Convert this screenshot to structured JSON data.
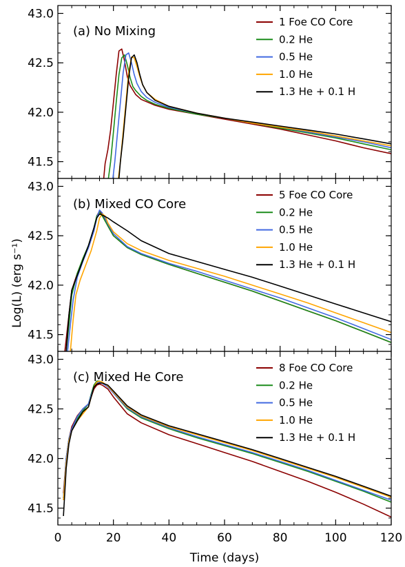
{
  "chart_data": {
    "type": "line",
    "xlabel": "Time (days)",
    "ylabel": "Log(L) (erg s⁻¹)",
    "xlim": [
      0,
      120
    ],
    "ylim": [
      41.33,
      43.08
    ],
    "xticks": [
      0,
      20,
      40,
      60,
      80,
      100,
      120
    ],
    "yticks": [
      41.5,
      42.0,
      42.5,
      43.0
    ],
    "xtick_labels": [
      "0",
      "20",
      "40",
      "60",
      "80",
      "100",
      "120"
    ],
    "ytick_labels": [
      "41.5",
      "42.0",
      "42.5",
      "43.0"
    ],
    "series_colors": [
      "#8b0000",
      "#1a8c1a",
      "#4169e1",
      "#ffa500",
      "#000000"
    ],
    "legend_position": "top-right",
    "panels": [
      {
        "title": "(a) No Mixing",
        "series": [
          {
            "name": "1 Foe CO Core",
            "x": [
              16.5,
              17,
              18,
              19,
              20,
              21,
              22,
              23,
              24,
              25,
              26,
              28,
              30,
              35,
              40,
              50,
              60,
              70,
              80,
              90,
              100,
              110,
              120
            ],
            "y": [
              41.33,
              41.48,
              41.62,
              41.82,
              42.1,
              42.38,
              42.62,
              42.64,
              42.52,
              42.36,
              42.27,
              42.18,
              42.13,
              42.07,
              42.03,
              41.98,
              41.93,
              41.88,
              41.83,
              41.77,
              41.71,
              41.64,
              41.58
            ]
          },
          {
            "name": "0.2 He",
            "x": [
              18.2,
              19,
              20,
              21,
              22,
              23,
              24,
              25,
              26,
              27,
              28,
              30,
              32,
              35,
              40,
              50,
              60,
              70,
              80,
              90,
              100,
              110,
              120
            ],
            "y": [
              41.33,
              41.5,
              41.8,
              42.1,
              42.38,
              42.55,
              42.58,
              42.48,
              42.35,
              42.26,
              42.22,
              42.16,
              42.12,
              42.08,
              42.04,
              41.98,
              41.94,
              41.89,
              41.84,
              41.79,
              41.74,
              41.68,
              41.62
            ]
          },
          {
            "name": "0.5 He",
            "x": [
              19.8,
              20.5,
              21.5,
              22.5,
              23.5,
              24.5,
              25.5,
              26.5,
              27.5,
              28.5,
              30,
              32,
              35,
              40,
              50,
              60,
              70,
              80,
              90,
              100,
              110,
              120
            ],
            "y": [
              41.33,
              41.5,
              41.8,
              42.1,
              42.4,
              42.58,
              42.6,
              42.5,
              42.38,
              42.29,
              42.21,
              42.15,
              42.1,
              42.05,
              41.99,
              41.94,
              41.89,
              41.85,
              41.8,
              41.75,
              41.7,
              41.64
            ]
          },
          {
            "name": "1.0 He",
            "x": [
              21.8,
              22.5,
              23.5,
              24.5,
              25.5,
              26.5,
              27.5,
              28.5,
              29.5,
              30.5,
              32,
              35,
              40,
              50,
              60,
              70,
              80,
              90,
              100,
              110,
              120
            ],
            "y": [
              41.33,
              41.5,
              41.8,
              42.1,
              42.4,
              42.56,
              42.55,
              42.46,
              42.36,
              42.28,
              42.2,
              42.13,
              42.06,
              41.99,
              41.94,
              41.89,
              41.85,
              41.81,
              41.76,
              41.71,
              41.66
            ]
          },
          {
            "name": "1.3 He + 0.1 H",
            "x": [
              22,
              22.5,
              23.5,
              24.5,
              25.5,
              26.5,
              27.5,
              28.5,
              29.5,
              30.5,
              32,
              35,
              40,
              50,
              60,
              70,
              80,
              90,
              100,
              110,
              120
            ],
            "y": [
              41.33,
              41.5,
              41.75,
              42.05,
              42.35,
              42.55,
              42.58,
              42.5,
              42.38,
              42.28,
              42.2,
              42.12,
              42.06,
              41.99,
              41.94,
              41.9,
              41.86,
              41.82,
              41.78,
              41.73,
              41.68
            ]
          }
        ]
      },
      {
        "title": "(b) Mixed CO Core",
        "legend_first": "5 Foe CO Core",
        "series": [
          {
            "name": "5 Foe CO Core",
            "x": [
              2.5,
              4,
              5,
              7,
              9,
              11,
              13,
              14,
              15,
              16,
              18,
              20,
              25,
              30,
              40,
              50,
              60,
              70,
              80,
              90,
              100,
              110,
              120
            ],
            "y": [
              41.33,
              41.7,
              41.95,
              42.12,
              42.25,
              42.38,
              42.55,
              42.7,
              42.75,
              42.72,
              42.6,
              42.5,
              42.38,
              42.31,
              42.21,
              42.12,
              42.03,
              41.94,
              41.84,
              41.74,
              41.64,
              41.53,
              41.42
            ]
          },
          {
            "name": "0.2 He",
            "x": [
              3,
              4,
              5,
              7,
              9,
              11,
              13,
              14,
              15,
              16,
              18,
              20,
              25,
              30,
              40,
              50,
              60,
              70,
              80,
              90,
              100,
              110,
              120
            ],
            "y": [
              41.33,
              41.6,
              41.9,
              42.12,
              42.27,
              42.4,
              42.58,
              42.7,
              42.74,
              42.7,
              42.6,
              42.5,
              42.38,
              42.31,
              42.21,
              42.12,
              42.03,
              41.94,
              41.84,
              41.74,
              41.64,
              41.53,
              41.42
            ]
          },
          {
            "name": "0.5 He",
            "x": [
              3.5,
              4.5,
              5.5,
              7,
              9,
              11,
              13,
              14,
              15,
              16,
              18,
              20,
              25,
              30,
              40,
              50,
              60,
              70,
              80,
              90,
              100,
              110,
              120
            ],
            "y": [
              41.33,
              41.6,
              41.85,
              42.08,
              42.24,
              42.38,
              42.55,
              42.68,
              42.76,
              42.73,
              42.62,
              42.52,
              42.39,
              42.32,
              42.22,
              42.14,
              42.05,
              41.96,
              41.87,
              41.77,
              41.67,
              41.56,
              41.45
            ]
          },
          {
            "name": "1.0 He",
            "x": [
              4.5,
              5.5,
              6.5,
              8,
              10,
              12,
              14,
              15,
              16,
              17,
              18,
              20,
              25,
              30,
              40,
              50,
              60,
              70,
              80,
              90,
              100,
              110,
              120
            ],
            "y": [
              41.33,
              41.65,
              41.9,
              42.05,
              42.2,
              42.35,
              42.55,
              42.68,
              42.72,
              42.7,
              42.63,
              42.54,
              42.42,
              42.35,
              42.25,
              42.17,
              42.09,
              42.0,
              41.91,
              41.82,
              41.72,
              41.62,
              41.52
            ]
          },
          {
            "name": "1.3 He + 0.1 H",
            "x": [
              3,
              4,
              5,
              7,
              9,
              11,
              13,
              14,
              15,
              16,
              18,
              20,
              25,
              30,
              40,
              50,
              60,
              70,
              80,
              90,
              100,
              110,
              120
            ],
            "y": [
              41.33,
              41.7,
              41.95,
              42.1,
              42.25,
              42.4,
              42.58,
              42.68,
              42.72,
              42.71,
              42.68,
              42.64,
              42.55,
              42.45,
              42.32,
              42.24,
              42.16,
              42.08,
              41.99,
              41.9,
              41.81,
              41.72,
              41.63
            ]
          }
        ]
      },
      {
        "title": "(c) Mixed He Core",
        "series": [
          {
            "name": "8 Foe CO Core",
            "x": [
              2,
              3,
              4,
              5,
              7,
              9,
              11,
              12,
              13,
              14,
              15,
              16,
              18,
              20,
              25,
              30,
              40,
              50,
              60,
              70,
              80,
              90,
              100,
              110,
              120
            ],
            "y": [
              41.65,
              42.0,
              42.2,
              42.32,
              42.43,
              42.5,
              42.55,
              42.62,
              42.7,
              42.74,
              42.75,
              42.74,
              42.7,
              42.62,
              42.45,
              42.36,
              42.24,
              42.15,
              42.06,
              41.97,
              41.87,
              41.77,
              41.66,
              41.54,
              41.41
            ]
          },
          {
            "name": "0.2 He",
            "x": [
              2,
              3,
              4,
              5,
              7,
              9,
              11,
              12,
              13,
              14,
              15,
              16,
              18,
              20,
              25,
              30,
              40,
              50,
              60,
              70,
              80,
              90,
              100,
              110,
              120
            ],
            "y": [
              41.6,
              42.0,
              42.2,
              42.3,
              42.4,
              42.48,
              42.55,
              42.65,
              42.74,
              42.78,
              42.78,
              42.77,
              42.73,
              42.66,
              42.5,
              42.41,
              42.3,
              42.21,
              42.13,
              42.05,
              41.96,
              41.87,
              41.77,
              41.67,
              41.56
            ]
          },
          {
            "name": "0.5 He",
            "x": [
              2,
              3,
              4,
              5,
              7,
              9,
              11,
              12,
              13,
              14,
              15,
              16,
              18,
              20,
              25,
              30,
              40,
              50,
              60,
              70,
              80,
              90,
              100,
              110,
              120
            ],
            "y": [
              41.6,
              42.0,
              42.2,
              42.3,
              42.42,
              42.5,
              42.55,
              42.64,
              42.72,
              42.76,
              42.77,
              42.76,
              42.72,
              42.66,
              42.51,
              42.42,
              42.31,
              42.22,
              42.14,
              42.06,
              41.97,
              41.88,
              41.78,
              41.68,
              41.58
            ]
          },
          {
            "name": "1.0 He",
            "x": [
              2,
              3,
              4,
              5,
              7,
              9,
              11,
              12,
              13,
              14,
              15,
              16,
              18,
              20,
              25,
              30,
              40,
              50,
              60,
              70,
              80,
              90,
              100,
              110,
              120
            ],
            "y": [
              41.58,
              41.95,
              42.18,
              42.28,
              42.38,
              42.45,
              42.52,
              42.62,
              42.72,
              42.77,
              42.78,
              42.77,
              42.73,
              42.67,
              42.52,
              42.43,
              42.32,
              42.24,
              42.16,
              42.08,
              41.99,
              41.9,
              41.81,
              41.71,
              41.61
            ]
          },
          {
            "name": "1.3 He + 0.1 H",
            "x": [
              2,
              3,
              4,
              5,
              7,
              9,
              11,
              12,
              13,
              14,
              15,
              16,
              18,
              20,
              25,
              30,
              40,
              50,
              60,
              70,
              80,
              90,
              100,
              110,
              120
            ],
            "y": [
              41.42,
              41.9,
              42.15,
              42.28,
              42.38,
              42.47,
              42.52,
              42.62,
              42.72,
              42.75,
              42.76,
              42.76,
              42.74,
              42.68,
              42.53,
              42.44,
              42.33,
              42.25,
              42.17,
              42.09,
              42.0,
              41.91,
              41.82,
              41.72,
              41.62
            ]
          }
        ]
      }
    ]
  }
}
